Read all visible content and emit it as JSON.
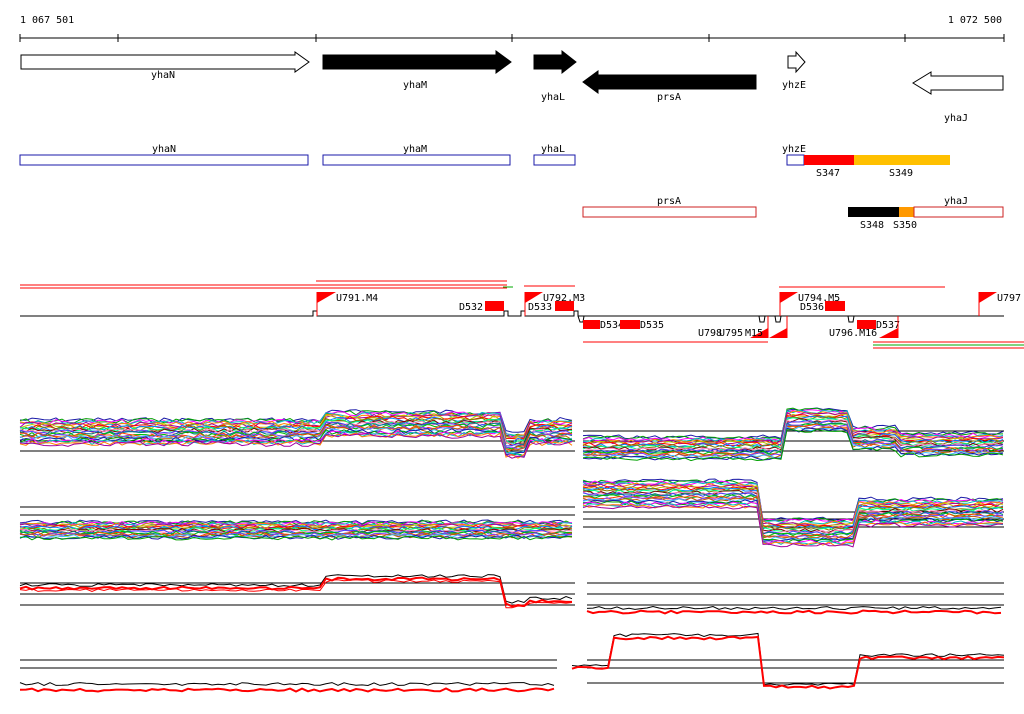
{
  "ruler": {
    "start_label": "1 067 501",
    "end_label": "1 072 500"
  },
  "genes": [
    {
      "name": "yhaN",
      "strand": "+",
      "style": "outline"
    },
    {
      "name": "yhaM",
      "strand": "+",
      "style": "filled"
    },
    {
      "name": "yhaL",
      "strand": "+",
      "style": "filled"
    },
    {
      "name": "prsA",
      "strand": "-",
      "style": "filled"
    },
    {
      "name": "yhzE",
      "strand": "+",
      "style": "outline"
    },
    {
      "name": "yhaJ",
      "strand": "-",
      "style": "outline"
    }
  ],
  "transcripts_top": [
    {
      "name": "yhaN",
      "color": "#1a1aa8"
    },
    {
      "name": "yhaM",
      "color": "#1a1aa8"
    },
    {
      "name": "yhaL",
      "color": "#1a1aa8"
    },
    {
      "name": "yhzE",
      "color": "#1a1aa8"
    }
  ],
  "segments_top": [
    {
      "name": "S347",
      "color": "#ff0000"
    },
    {
      "name": "S349",
      "color": "#ffc000"
    }
  ],
  "transcripts_bottom": [
    {
      "name": "prsA",
      "color": "#cc2222"
    },
    {
      "name": "yhaJ",
      "color": "#cc2222"
    }
  ],
  "segments_bottom": [
    {
      "name": "S348",
      "color": "#000000"
    },
    {
      "name": "S350",
      "color": "#ff9900"
    }
  ],
  "upshifts": [
    "U791.M4",
    "U792.M3",
    "U794.M5",
    "U797",
    "U796.M16",
    "U798",
    "U795",
    "M15"
  ],
  "downshifts": [
    "D532",
    "D533",
    "D534",
    "D535",
    "D536",
    "D537"
  ],
  "colors": {
    "gene_fill": "#000000",
    "outline_fill": "#ffffff",
    "flag": "#ff0000",
    "profile_main": "#ff0000",
    "profile_alt": "#000000"
  }
}
